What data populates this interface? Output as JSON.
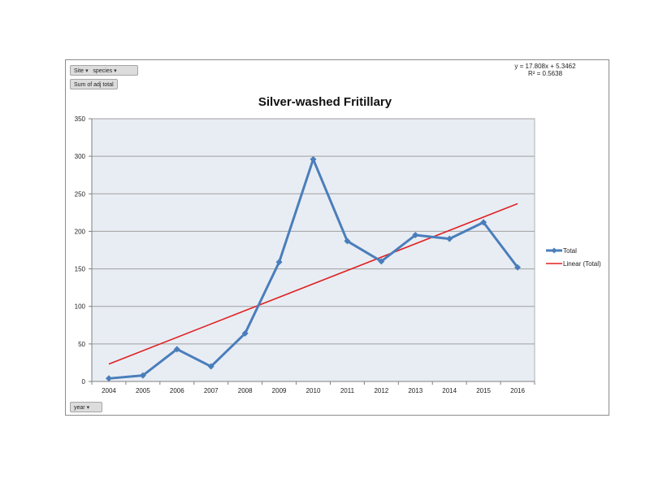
{
  "pivot": {
    "field_site": "Site",
    "field_species": "species",
    "field_value": "Sum of adj total",
    "field_year": "year",
    "filter_glyph": "▾"
  },
  "trendline": {
    "equation": "y = 17.808x + 5.3462",
    "r2_label": "R² = 0.5638"
  },
  "legend": {
    "total": "Total",
    "linear": "Linear (Total)"
  },
  "chart_data": {
    "type": "line",
    "title": "Silver-washed Fritillary",
    "xlabel": "",
    "ylabel": "",
    "categories": [
      "2004",
      "2005",
      "2006",
      "2007",
      "2008",
      "2009",
      "2010",
      "2011",
      "2012",
      "2013",
      "2014",
      "2015",
      "2016"
    ],
    "series": [
      {
        "name": "Total",
        "values": [
          4,
          8,
          43,
          20,
          64,
          159,
          296,
          187,
          160,
          195,
          190,
          212,
          152
        ],
        "color": "#4a7ebb",
        "marker": "diamond"
      }
    ],
    "trendline": {
      "name": "Linear (Total)",
      "slope": 17.808,
      "intercept": 5.3462,
      "r2": 0.5638,
      "color": "#e02020"
    },
    "yticks": [
      0,
      50,
      100,
      150,
      200,
      250,
      300,
      350
    ],
    "ylim": [
      0,
      350
    ],
    "grid": true,
    "plot_background": "#e8edf4",
    "legend_position": "right"
  }
}
